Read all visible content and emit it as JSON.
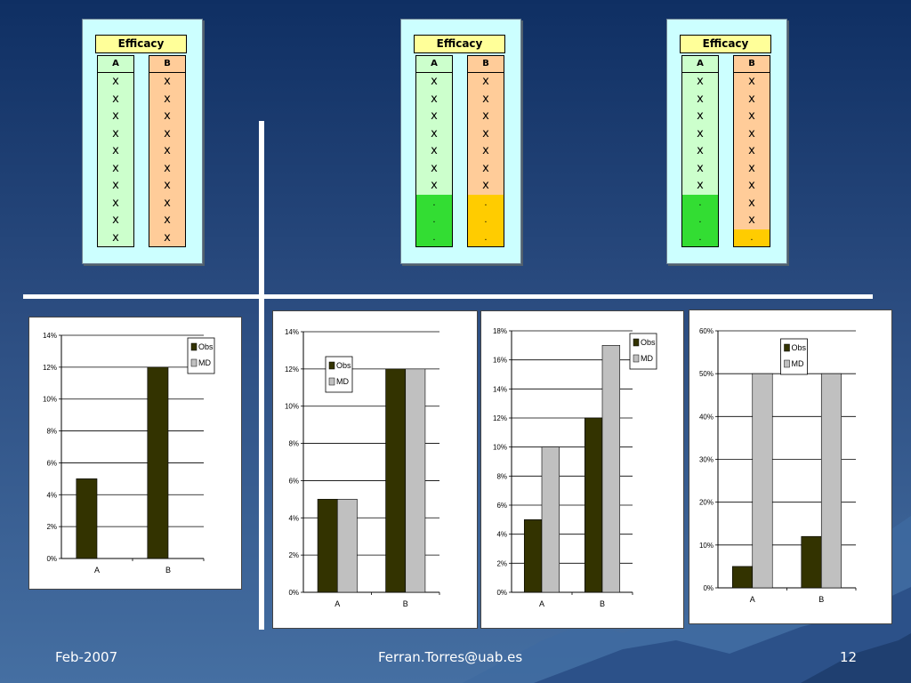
{
  "colors": {
    "obs": "#333300",
    "md": "#c0c0c0",
    "x_col_a": "#ccffcc",
    "x_col_b": "#ffcc99",
    "missing_a": "#33dd33",
    "missing_b": "#ffcc00"
  },
  "tables": [
    {
      "title": "Efficacy",
      "col_a": "A",
      "col_b": "B",
      "cells_a": [
        "x",
        "x",
        "x",
        "x",
        "x",
        "x",
        "x",
        "x",
        "x",
        "x"
      ],
      "cells_b": [
        "x",
        "x",
        "x",
        "x",
        "x",
        "x",
        "x",
        "x",
        "x",
        "x"
      ]
    },
    {
      "title": "Efficacy",
      "col_a": "A",
      "col_b": "B",
      "cells_a": [
        "x",
        "x",
        "x",
        "x",
        "x",
        "x",
        "x",
        ".",
        ".",
        "."
      ],
      "cells_b": [
        "x",
        "x",
        "x",
        "x",
        "x",
        "x",
        "x",
        ".",
        ".",
        "."
      ]
    },
    {
      "title": "Efficacy",
      "col_a": "A",
      "col_b": "B",
      "cells_a": [
        "x",
        "x",
        "x",
        "x",
        "x",
        "x",
        "x",
        ".",
        ".",
        "."
      ],
      "cells_b": [
        "x",
        "x",
        "x",
        "x",
        "x",
        "x",
        "x",
        "x",
        "x",
        "."
      ]
    }
  ],
  "chart_data": [
    {
      "type": "bar",
      "categories": [
        "A",
        "B"
      ],
      "series": [
        {
          "name": "Obs",
          "values": [
            5,
            12
          ]
        },
        {
          "name": "MD",
          "values": [
            0,
            0
          ]
        }
      ],
      "ylim": [
        0,
        14
      ],
      "yticks": [
        "0%",
        "2%",
        "4%",
        "6%",
        "8%",
        "10%",
        "12%",
        "14%"
      ],
      "legend": "top-right",
      "grid": true
    },
    {
      "type": "bar",
      "categories": [
        "A",
        "B"
      ],
      "series": [
        {
          "name": "Obs",
          "values": [
            5,
            12
          ]
        },
        {
          "name": "MD",
          "values": [
            5,
            12
          ]
        }
      ],
      "ylim": [
        0,
        14
      ],
      "yticks": [
        "0%",
        "2%",
        "4%",
        "6%",
        "8%",
        "10%",
        "12%",
        "14%"
      ],
      "legend": "top-left",
      "grid": true
    },
    {
      "type": "bar",
      "categories": [
        "A",
        "B"
      ],
      "series": [
        {
          "name": "Obs",
          "values": [
            5,
            12
          ]
        },
        {
          "name": "MD",
          "values": [
            10,
            17
          ]
        }
      ],
      "ylim": [
        0,
        18
      ],
      "yticks": [
        "0%",
        "2%",
        "4%",
        "6%",
        "8%",
        "10%",
        "12%",
        "14%",
        "16%",
        "18%"
      ],
      "legend": "top-right",
      "grid": true
    },
    {
      "type": "bar",
      "categories": [
        "A",
        "B"
      ],
      "series": [
        {
          "name": "Obs",
          "values": [
            5,
            12
          ]
        },
        {
          "name": "MD",
          "values": [
            50,
            50
          ]
        }
      ],
      "ylim": [
        0,
        60
      ],
      "yticks": [
        "0%",
        "10%",
        "20%",
        "30%",
        "40%",
        "50%",
        "60%"
      ],
      "legend": "top-center",
      "grid": true
    }
  ],
  "footer": {
    "left": "Feb-2007",
    "center": "Ferran.Torres@uab.es",
    "right": "12"
  }
}
